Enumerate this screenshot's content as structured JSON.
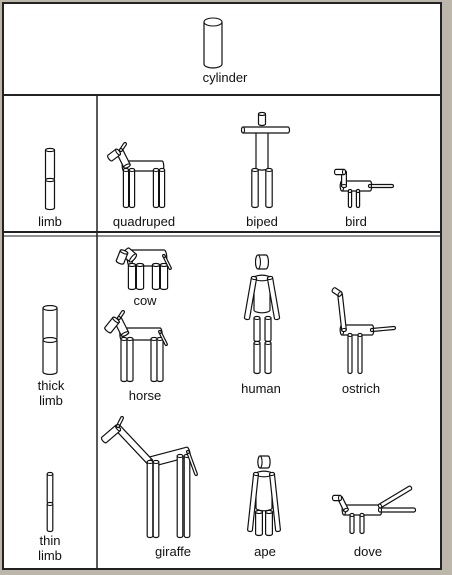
{
  "labels": {
    "cylinder": "cylinder",
    "limb": "limb",
    "quadruped": "quadruped",
    "biped": "biped",
    "bird": "bird",
    "cow": "cow",
    "thick_limb": "thick\nlimb",
    "horse": "horse",
    "human": "human",
    "ostrich": "ostrich",
    "thin_limb": "thin\nlimb",
    "giraffe": "giraffe",
    "ape": "ape",
    "dove": "dove"
  }
}
